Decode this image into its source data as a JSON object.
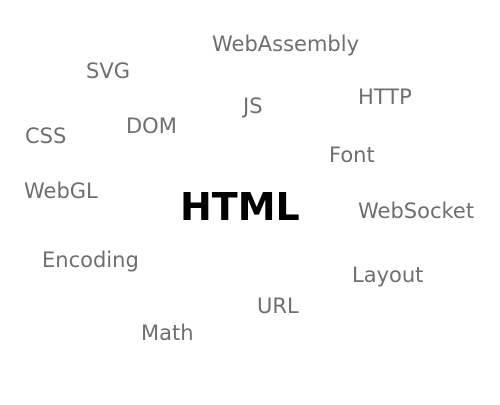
{
  "words": {
    "center": "HTML",
    "webassembly": "WebAssembly",
    "svg": "SVG",
    "js": "JS",
    "http": "HTTP",
    "dom": "DOM",
    "css": "CSS",
    "font": "Font",
    "webgl": "WebGL",
    "websocket": "WebSocket",
    "encoding": "Encoding",
    "layout": "Layout",
    "url": "URL",
    "math": "Math"
  },
  "colors": {
    "background": "#ffffff",
    "center_word": "#000000",
    "surrounding_words": "#6f6f6f"
  }
}
